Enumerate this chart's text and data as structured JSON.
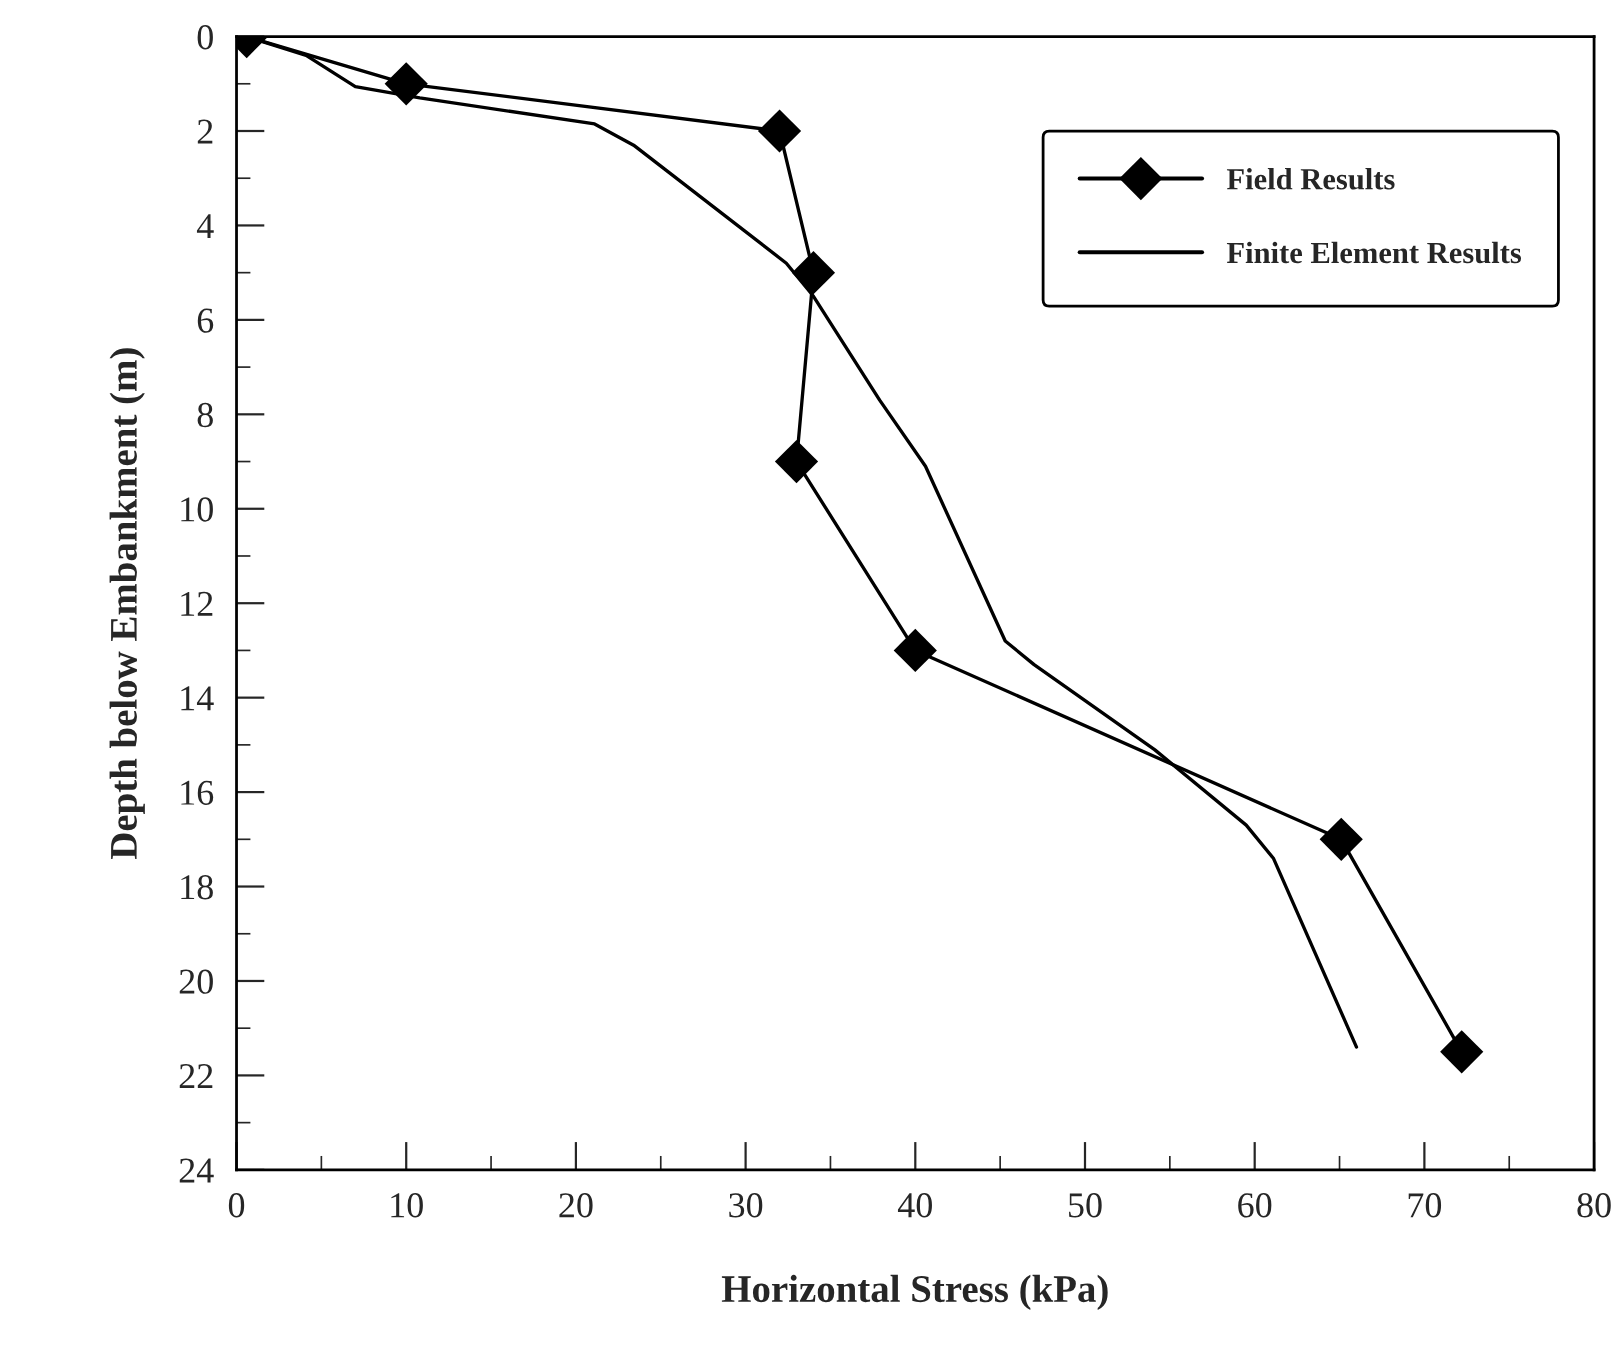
{
  "chart_data": {
    "type": "line",
    "xlabel": "Horizontal Stress (kPa)",
    "ylabel": "Depth below Embankment (m)",
    "xlim": [
      0,
      80
    ],
    "xticks": [
      0,
      10,
      20,
      30,
      40,
      50,
      60,
      70,
      80
    ],
    "ylim": [
      24,
      0
    ],
    "yticks": [
      0,
      2,
      4,
      6,
      8,
      10,
      12,
      14,
      16,
      18,
      20,
      22,
      24
    ],
    "grid": false,
    "legend": "top right",
    "series": [
      {
        "name": "Field Results",
        "color": "#000000",
        "marker": "diamond",
        "x": [
          0.6,
          10.0,
          32.0,
          34.0,
          33.0,
          40.0,
          65.1,
          72.2
        ],
        "values": [
          0,
          1.0,
          2.0,
          5.0,
          9.0,
          13.0,
          17.0,
          21.5
        ]
      },
      {
        "name": "Finite Element Results",
        "color": "#000000",
        "marker": "none",
        "x": [
          0.6,
          4.1,
          7.0,
          10.8,
          21.1,
          23.4,
          32.4,
          34.0,
          37.9,
          40.6,
          45.3,
          47.0,
          54.1,
          59.5,
          61.1,
          66.0
        ],
        "values": [
          0,
          0.4,
          1.06,
          1.3,
          1.85,
          2.3,
          4.8,
          5.5,
          7.7,
          9.1,
          12.8,
          13.3,
          15.1,
          16.7,
          17.4,
          21.4
        ]
      }
    ]
  }
}
